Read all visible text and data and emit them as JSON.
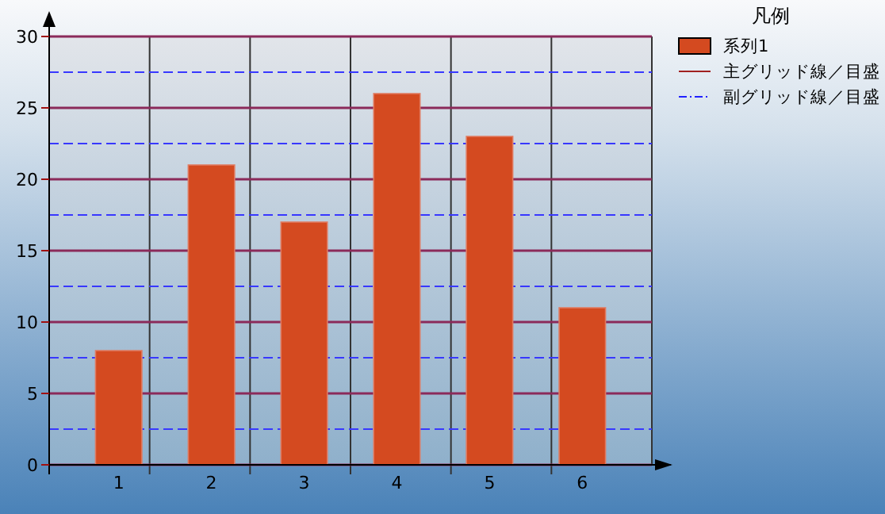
{
  "chart_data": {
    "type": "bar",
    "categories": [
      "1",
      "2",
      "3",
      "4",
      "5",
      "6"
    ],
    "series": [
      {
        "name": "系列1",
        "color": "#d44a20",
        "values": [
          8,
          21,
          17,
          26,
          23,
          11
        ]
      }
    ],
    "ylim": [
      0,
      30
    ],
    "yticks": [
      0,
      {
        "value": 2.5,
        "label": null
      },
      5,
      {
        "value": 7.5,
        "label": null
      },
      10,
      {
        "value": 12.5,
        "label": null
      },
      15,
      {
        "value": 17.5,
        "label": null
      },
      20,
      {
        "value": 22.5,
        "label": null
      },
      25,
      {
        "value": 27.5,
        "label": null
      },
      30
    ],
    "grid": true,
    "legend": "top right",
    "legend_title": "凡例",
    "annotations": [
      "主グリッド線／目盛",
      "副グリッド線／目盛"
    ]
  }
}
